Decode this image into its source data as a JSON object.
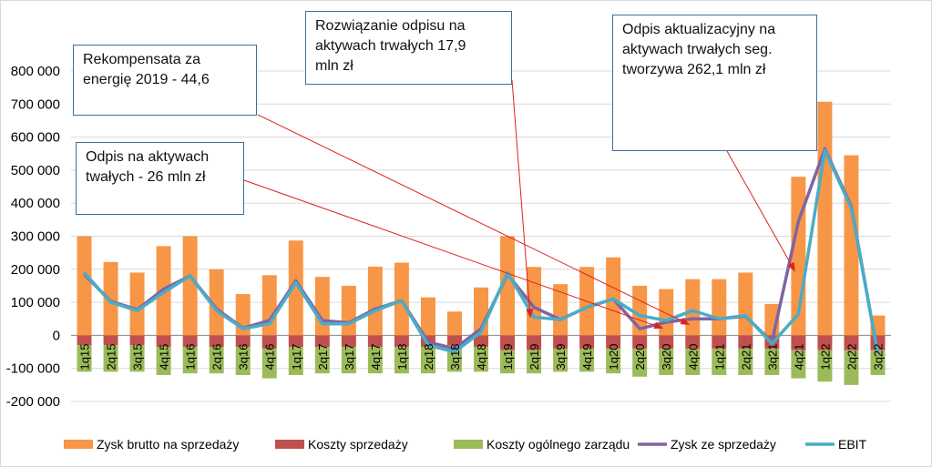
{
  "chart_data": {
    "type": "bar",
    "categories": [
      "1q15",
      "2q15",
      "3q15",
      "4q15",
      "1q16",
      "2q16",
      "3q16",
      "4q16",
      "1q17",
      "2q17",
      "3q17",
      "4q17",
      "1q18",
      "2q18",
      "3q18",
      "4q18",
      "1q19",
      "2q19",
      "3q19",
      "4q19",
      "1q20",
      "2q20",
      "3q20",
      "4q20",
      "1q21",
      "2q21",
      "3q21",
      "4q21",
      "1q22",
      "2q22",
      "3q22"
    ],
    "series": [
      {
        "name": "Zysk brutto na sprzedaży",
        "kind": "bar",
        "color": "#F79646",
        "values": [
          300000,
          222000,
          190000,
          270000,
          300000,
          200000,
          125000,
          182000,
          287000,
          177000,
          150000,
          208000,
          220000,
          115000,
          72000,
          145000,
          300000,
          207000,
          155000,
          207000,
          236000,
          150000,
          140000,
          170000,
          170000,
          190000,
          95000,
          480000,
          707000,
          545000,
          60000
        ]
      },
      {
        "name": "Koszty sprzedaży",
        "kind": "bar",
        "color": "#C0504D",
        "values": [
          -30000,
          -30000,
          -30000,
          -35000,
          -35000,
          -35000,
          -35000,
          -40000,
          -35000,
          -35000,
          -35000,
          -35000,
          -35000,
          -35000,
          -30000,
          -35000,
          -45000,
          -45000,
          -40000,
          -40000,
          -40000,
          -40000,
          -40000,
          -40000,
          -40000,
          -40000,
          -40000,
          -45000,
          -45000,
          -45000,
          -45000
        ]
      },
      {
        "name": "Koszty ogólnego zarządu",
        "kind": "bar",
        "color": "#9BBB59",
        "values": [
          -80000,
          -80000,
          -80000,
          -85000,
          -80000,
          -80000,
          -85000,
          -90000,
          -85000,
          -80000,
          -80000,
          -80000,
          -80000,
          -80000,
          -80000,
          -75000,
          -70000,
          -70000,
          -70000,
          -70000,
          -75000,
          -85000,
          -80000,
          -80000,
          -80000,
          -80000,
          -80000,
          -85000,
          -95000,
          -105000,
          -75000
        ]
      },
      {
        "name": "Zysk ze sprzedaży",
        "kind": "line",
        "color": "#8064A2",
        "values": [
          185000,
          103000,
          78000,
          140000,
          180000,
          80000,
          22000,
          45000,
          165000,
          45000,
          38000,
          80000,
          105000,
          -20000,
          -40000,
          20000,
          185000,
          85000,
          48000,
          85000,
          110000,
          20000,
          40000,
          50000,
          50000,
          58000,
          -20000,
          345000,
          565000,
          390000,
          -55000
        ]
      },
      {
        "name": "EBIT",
        "kind": "line",
        "color": "#4BACC6",
        "values": [
          190000,
          100000,
          75000,
          130000,
          180000,
          75000,
          20000,
          35000,
          160000,
          35000,
          35000,
          75000,
          105000,
          -30000,
          -50000,
          10000,
          190000,
          55000,
          48000,
          85000,
          110000,
          60000,
          45000,
          75000,
          50000,
          60000,
          -25000,
          65000,
          560000,
          385000,
          -55000
        ]
      }
    ],
    "yticks": [
      -200000,
      -100000,
      0,
      100000,
      200000,
      300000,
      400000,
      500000,
      600000,
      700000,
      800000
    ],
    "ytick_labels": [
      "-200 000",
      "-100 000",
      "0",
      "100 000",
      "200 000",
      "300 000",
      "400 000",
      "500 000",
      "600 000",
      "700 000",
      "800 000"
    ],
    "ylim": [
      -200000,
      800000
    ],
    "grid": true,
    "legend_placement": "bottom",
    "annotations": [
      {
        "text": "Rekompensata za\nenergię 2019 - 44,6",
        "target_index": 23,
        "target_value": 33000
      },
      {
        "text": "Rozwiązanie odpisu na\naktywach trwałych 17,9\nmln zł",
        "target_index": 17,
        "target_value": 55000
      },
      {
        "text": "Odpis aktualizacyjny na\naktywach trwałych seg.\ntworzywa 262,1 mln zł",
        "target_index": 27,
        "target_value": 195000
      },
      {
        "text": "Odpis na aktywach\ntwałych - 26 mln zł",
        "target_index": 22,
        "target_value": 22000
      }
    ]
  }
}
